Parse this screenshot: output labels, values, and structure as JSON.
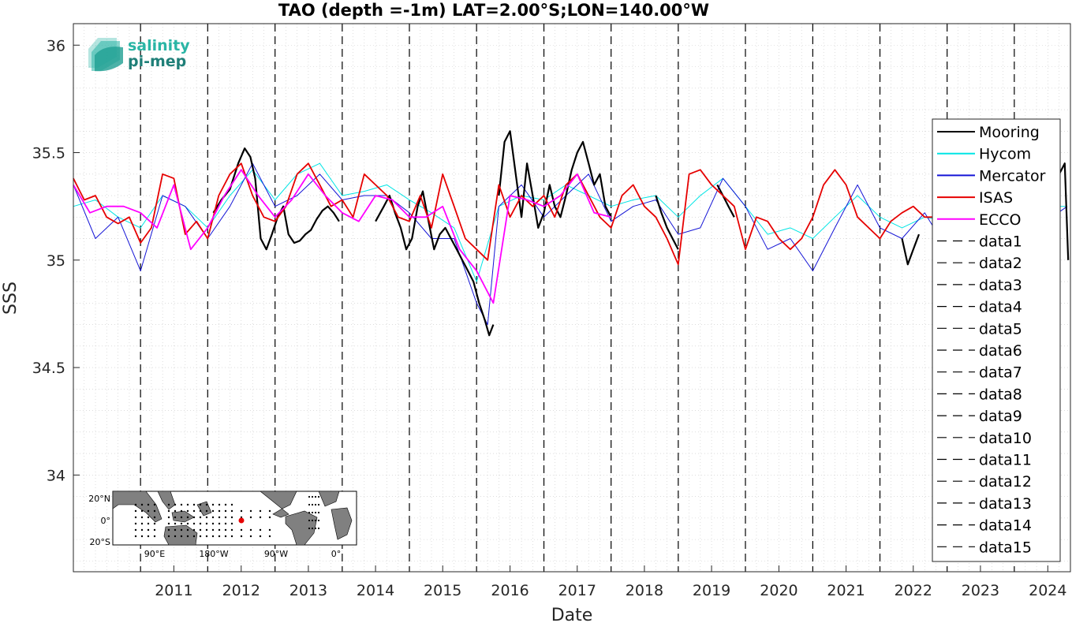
{
  "chart_data": {
    "type": "line",
    "title": "TAO (depth =-1m) LAT=2.00°S;LON=140.00°W",
    "xlabel": "Date",
    "ylabel": "SSS",
    "xlim": [
      "2010-01-01",
      "2024-11-01"
    ],
    "ylim": [
      33.55,
      36.1
    ],
    "x_ticks": [
      "2011",
      "2012",
      "2013",
      "2014",
      "2015",
      "2016",
      "2017",
      "2018",
      "2019",
      "2020",
      "2021",
      "2022",
      "2023",
      "2024"
    ],
    "y_ticks": [
      "34",
      "34.5",
      "35",
      "35.5",
      "36"
    ],
    "grid": "minor dotted",
    "legend_position": "right",
    "series": [
      {
        "name": "Mooring",
        "color": "#000000",
        "segments": [
          {
            "x": [
              "2012-02-01",
              "2012-03-15",
              "2012-05-01",
              "2012-06-15",
              "2012-07-20",
              "2012-08-20",
              "2012-09-15",
              "2012-10-15",
              "2012-11-15",
              "2012-12-15",
              "2013-01-15",
              "2013-02-15",
              "2013-03-15",
              "2013-04-15",
              "2013-05-15",
              "2013-06-15",
              "2013-07-15",
              "2013-08-15",
              "2013-09-15",
              "2013-10-15",
              "2013-11-15",
              "2013-12-15"
            ],
            "y": [
              35.22,
              35.28,
              35.33,
              35.45,
              35.52,
              35.48,
              35.38,
              35.1,
              35.05,
              35.12,
              35.2,
              35.25,
              35.12,
              35.08,
              35.09,
              35.12,
              35.14,
              35.19,
              35.23,
              35.25,
              35.22,
              35.18
            ]
          },
          {
            "x": [
              "2014-07-01",
              "2014-08-15",
              "2014-09-15",
              "2014-10-15",
              "2014-11-15",
              "2014-12-15",
              "2015-01-15",
              "2015-02-15",
              "2015-03-15",
              "2015-04-15",
              "2015-05-15",
              "2015-06-15",
              "2015-07-15",
              "2015-08-15",
              "2015-09-15",
              "2015-10-15",
              "2015-11-15",
              "2015-12-15",
              "2016-01-15",
              "2016-02-15",
              "2016-03-10",
              "2016-04-01"
            ],
            "y": [
              35.18,
              35.25,
              35.3,
              35.22,
              35.15,
              35.05,
              35.1,
              35.25,
              35.32,
              35.18,
              35.05,
              35.12,
              35.15,
              35.1,
              35.05,
              35.0,
              34.95,
              34.9,
              34.8,
              34.72,
              34.65,
              34.7
            ]
          },
          {
            "x": [
              "2016-05-01",
              "2016-06-01",
              "2016-07-01",
              "2016-08-01",
              "2016-09-01",
              "2016-10-01",
              "2016-11-01",
              "2016-12-01",
              "2017-01-01",
              "2017-02-01",
              "2017-03-01",
              "2017-04-01",
              "2017-05-01",
              "2017-06-01",
              "2017-07-01",
              "2017-08-01",
              "2017-09-01",
              "2017-10-01",
              "2017-11-01",
              "2017-12-01",
              "2018-01-01"
            ],
            "y": [
              35.3,
              35.55,
              35.6,
              35.4,
              35.2,
              35.45,
              35.3,
              35.15,
              35.22,
              35.35,
              35.25,
              35.2,
              35.3,
              35.42,
              35.5,
              35.55,
              35.45,
              35.35,
              35.4,
              35.25,
              35.2
            ]
          },
          {
            "x": [
              "2018-09-01",
              "2018-10-01",
              "2018-11-01",
              "2018-12-01",
              "2019-01-01"
            ],
            "y": [
              35.3,
              35.22,
              35.15,
              35.1,
              35.05
            ]
          },
          {
            "x": [
              "2019-08-01",
              "2019-09-01",
              "2019-10-01",
              "2019-11-01"
            ],
            "y": [
              35.35,
              35.3,
              35.25,
              35.2
            ]
          },
          {
            "x": [
              "2022-05-01",
              "2022-06-01",
              "2022-07-01",
              "2022-08-01"
            ],
            "y": [
              35.1,
              34.98,
              35.05,
              35.12
            ]
          },
          {
            "x": [
              "2024-08-01",
              "2024-09-01",
              "2024-10-01",
              "2024-10-20"
            ],
            "y": [
              35.2,
              35.4,
              35.45,
              35.0
            ]
          }
        ]
      },
      {
        "name": "Hycom",
        "color": "#00e5e5",
        "segments": [
          {
            "x": [
              "2010-01-01",
              "2010-05-01",
              "2010-09-01",
              "2011-01-01",
              "2011-05-01",
              "2011-09-01",
              "2012-01-01",
              "2012-05-01",
              "2012-09-01",
              "2013-01-01",
              "2013-05-01",
              "2013-09-01",
              "2014-01-01",
              "2014-05-01",
              "2014-09-01",
              "2015-01-01",
              "2015-05-01",
              "2015-09-01",
              "2016-01-01",
              "2016-05-01",
              "2016-09-01",
              "2017-01-01",
              "2017-05-01",
              "2017-09-01",
              "2018-01-01",
              "2018-05-01",
              "2018-09-01",
              "2019-01-01",
              "2019-05-01",
              "2019-09-01",
              "2020-01-01",
              "2020-05-01",
              "2020-09-01",
              "2021-01-01",
              "2021-05-01",
              "2021-09-01",
              "2022-01-01",
              "2022-05-01",
              "2022-09-01",
              "2023-01-01",
              "2023-05-01",
              "2023-09-01",
              "2024-01-01",
              "2024-05-01",
              "2024-10-15"
            ],
            "y": [
              35.25,
              35.28,
              35.2,
              35.15,
              35.3,
              35.25,
              35.15,
              35.3,
              35.42,
              35.28,
              35.4,
              35.45,
              35.3,
              35.32,
              35.35,
              35.28,
              35.22,
              35.15,
              34.9,
              35.25,
              35.3,
              35.28,
              35.35,
              35.3,
              35.25,
              35.28,
              35.3,
              35.2,
              35.3,
              35.38,
              35.25,
              35.12,
              35.15,
              35.1,
              35.2,
              35.3,
              35.2,
              35.15,
              35.2,
              35.18,
              35.2,
              35.25,
              35.22,
              35.25,
              35.25
            ]
          }
        ]
      },
      {
        "name": "Mercator",
        "color": "#1515d6",
        "segments": [
          {
            "x": [
              "2010-01-01",
              "2010-05-01",
              "2010-09-01",
              "2011-01-01",
              "2011-05-01",
              "2011-09-01",
              "2012-01-01",
              "2012-05-01",
              "2012-09-01",
              "2013-01-01",
              "2013-05-01",
              "2013-09-01",
              "2014-01-01",
              "2014-05-01",
              "2014-09-01",
              "2015-01-01",
              "2015-05-01",
              "2015-09-01",
              "2016-01-01",
              "2016-03-01",
              "2016-05-01",
              "2016-09-01",
              "2017-01-01",
              "2017-05-01",
              "2017-09-01",
              "2018-01-01",
              "2018-05-01",
              "2018-09-01",
              "2019-01-01",
              "2019-05-01",
              "2019-09-01",
              "2020-01-01",
              "2020-05-01",
              "2020-09-01",
              "2021-01-01",
              "2021-05-01",
              "2021-09-01",
              "2022-01-01",
              "2022-05-01",
              "2022-09-01",
              "2023-01-01",
              "2023-05-01",
              "2023-09-01",
              "2024-01-01",
              "2024-05-01",
              "2024-10-15"
            ],
            "y": [
              35.35,
              35.1,
              35.2,
              34.95,
              35.3,
              35.25,
              35.1,
              35.25,
              35.45,
              35.25,
              35.3,
              35.4,
              35.28,
              35.3,
              35.3,
              35.22,
              35.1,
              35.1,
              34.8,
              34.7,
              35.25,
              35.35,
              35.2,
              35.3,
              35.4,
              35.18,
              35.25,
              35.28,
              35.12,
              35.15,
              35.38,
              35.25,
              35.05,
              35.1,
              34.95,
              35.15,
              35.35,
              35.15,
              35.1,
              35.22,
              35.05,
              35.1,
              35.2,
              35.22,
              35.15,
              35.25
            ]
          }
        ]
      },
      {
        "name": "ISAS",
        "color": "#e60000",
        "segments": [
          {
            "x": [
              "2010-01-01",
              "2010-03-01",
              "2010-05-01",
              "2010-07-01",
              "2010-09-01",
              "2010-11-01",
              "2011-01-01",
              "2011-03-01",
              "2011-05-01",
              "2011-07-01",
              "2011-09-01",
              "2011-11-01",
              "2012-01-01",
              "2012-03-01",
              "2012-05-01",
              "2012-07-01",
              "2012-09-01",
              "2012-11-01",
              "2013-01-01",
              "2013-03-01",
              "2013-05-01",
              "2013-07-01",
              "2013-09-01",
              "2013-11-01",
              "2014-01-01",
              "2014-03-01",
              "2014-05-01",
              "2014-07-01",
              "2014-09-01",
              "2014-11-01",
              "2015-01-01",
              "2015-03-01",
              "2015-05-01",
              "2015-07-01",
              "2015-09-01",
              "2015-11-01",
              "2016-01-01",
              "2016-03-01",
              "2016-05-01",
              "2016-07-01",
              "2016-09-01",
              "2016-11-01",
              "2017-01-01",
              "2017-03-01",
              "2017-05-01",
              "2017-07-01",
              "2017-09-01",
              "2017-11-01",
              "2018-01-01",
              "2018-03-01",
              "2018-05-01",
              "2018-07-01",
              "2018-09-01",
              "2018-11-01",
              "2019-01-01",
              "2019-03-01",
              "2019-05-01",
              "2019-07-01",
              "2019-09-01",
              "2019-11-01",
              "2020-01-01",
              "2020-03-01",
              "2020-05-01",
              "2020-07-01",
              "2020-09-01",
              "2020-11-01",
              "2021-01-01",
              "2021-03-01",
              "2021-05-01",
              "2021-07-01",
              "2021-09-01",
              "2021-11-01",
              "2022-01-01",
              "2022-03-01",
              "2022-05-01",
              "2022-07-01",
              "2022-09-01",
              "2022-11-01"
            ],
            "y": [
              35.38,
              35.28,
              35.3,
              35.2,
              35.17,
              35.2,
              35.08,
              35.15,
              35.4,
              35.38,
              35.12,
              35.18,
              35.1,
              35.3,
              35.4,
              35.45,
              35.3,
              35.2,
              35.18,
              35.25,
              35.4,
              35.45,
              35.35,
              35.25,
              35.28,
              35.2,
              35.4,
              35.35,
              35.3,
              35.2,
              35.18,
              35.3,
              35.15,
              35.4,
              35.25,
              35.1,
              35.05,
              35.0,
              35.35,
              35.2,
              35.3,
              35.25,
              35.3,
              35.2,
              35.35,
              35.4,
              35.3,
              35.2,
              35.15,
              35.3,
              35.35,
              35.25,
              35.2,
              35.1,
              34.98,
              35.4,
              35.42,
              35.35,
              35.3,
              35.25,
              35.05,
              35.2,
              35.18,
              35.1,
              35.05,
              35.1,
              35.2,
              35.35,
              35.42,
              35.35,
              35.2,
              35.15,
              35.1,
              35.18,
              35.22,
              35.25,
              35.2,
              35.2
            ]
          }
        ]
      },
      {
        "name": "ECCO",
        "color": "#ff00ff",
        "segments": [
          {
            "x": [
              "2010-01-01",
              "2010-04-01",
              "2010-07-01",
              "2010-10-01",
              "2011-01-01",
              "2011-04-01",
              "2011-07-01",
              "2011-10-01",
              "2012-01-01",
              "2012-04-01",
              "2012-07-01",
              "2012-10-01",
              "2013-01-01",
              "2013-04-01",
              "2013-07-01",
              "2013-10-01",
              "2014-01-01",
              "2014-04-01",
              "2014-07-01",
              "2014-10-01",
              "2015-01-01",
              "2015-04-01",
              "2015-07-01",
              "2015-10-01",
              "2016-01-01",
              "2016-04-01",
              "2016-07-01",
              "2016-10-01",
              "2017-01-01",
              "2017-04-01",
              "2017-07-01",
              "2017-10-01",
              "2018-01-01"
            ],
            "y": [
              35.35,
              35.22,
              35.25,
              35.25,
              35.22,
              35.15,
              35.35,
              35.05,
              35.15,
              35.3,
              35.42,
              35.3,
              35.2,
              35.28,
              35.4,
              35.3,
              35.22,
              35.18,
              35.3,
              35.28,
              35.2,
              35.2,
              35.25,
              35.05,
              34.95,
              34.8,
              35.3,
              35.28,
              35.25,
              35.3,
              35.4,
              35.22,
              35.2
            ]
          }
        ]
      }
    ],
    "legend_placeholders": [
      "data1",
      "data2",
      "data3",
      "data4",
      "data5",
      "data6",
      "data7",
      "data8",
      "data9",
      "data10",
      "data11",
      "data12",
      "data13",
      "data14",
      "data15"
    ],
    "vertical_dashed_lines_x": [
      "2011-01-01",
      "2012-01-01",
      "2013-01-01",
      "2014-01-01",
      "2015-01-01",
      "2016-01-01",
      "2017-01-01",
      "2018-01-01",
      "2019-01-01",
      "2020-01-01",
      "2021-01-01",
      "2022-01-01",
      "2023-01-01",
      "2024-01-01"
    ],
    "logo": {
      "line1": "salinity",
      "line2": "pi-mep",
      "color1": "#2ab5a5",
      "color2": "#1f7f78"
    },
    "inset_map": {
      "ylabels": [
        "20°N",
        "0°",
        "20°S"
      ],
      "xlabels": [
        "90°E",
        "180°W",
        "90°W",
        "0°"
      ],
      "marker_color": "#e60000"
    }
  }
}
